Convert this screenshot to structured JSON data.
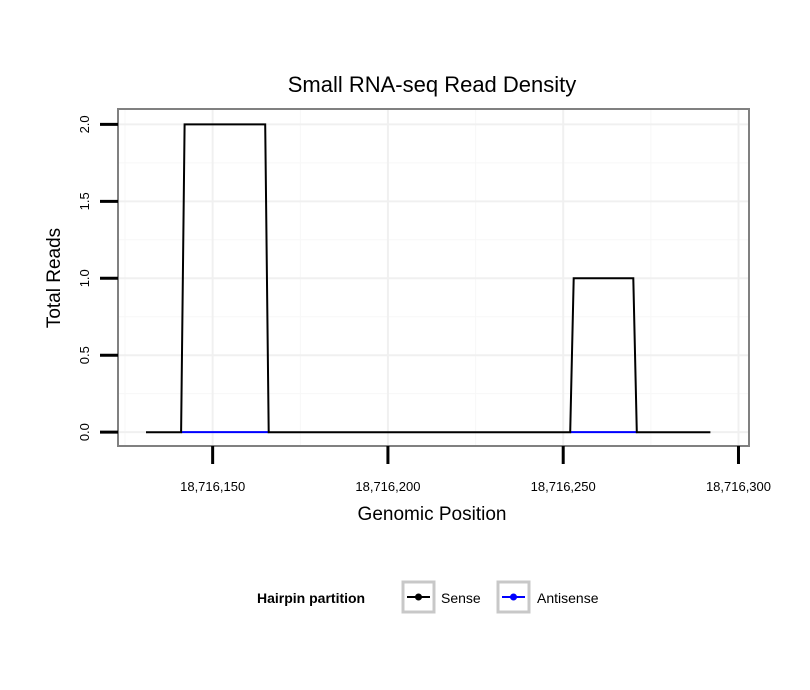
{
  "chart_data": {
    "type": "line",
    "title": "Small RNA-seq Read Density",
    "xlabel": "Genomic Position",
    "ylabel": "Total Reads",
    "xlim": [
      18716123,
      18716303
    ],
    "ylim": [
      -0.09,
      2.1
    ],
    "x_ticks": [
      18716150,
      18716200,
      18716250,
      18716300
    ],
    "x_tick_labels": [
      "18,716,150",
      "18,716,200",
      "18,716,250",
      "18,716,300"
    ],
    "y_ticks": [
      0.0,
      0.5,
      1.0,
      1.5,
      2.0
    ],
    "y_tick_labels": [
      "0.0",
      "0.5",
      "1.0",
      "1.5",
      "2.0"
    ],
    "grid": true,
    "legend": {
      "title": "Hairpin partition",
      "position": "bottom",
      "entries": [
        "Sense",
        "Antisense"
      ]
    },
    "series": [
      {
        "name": "Sense",
        "color": "#000000",
        "x": [
          18716131,
          18716141,
          18716142,
          18716165,
          18716166,
          18716252,
          18716253,
          18716270,
          18716271,
          18716292
        ],
        "values": [
          0,
          0,
          2,
          2,
          0,
          0,
          1,
          1,
          0,
          0
        ]
      },
      {
        "name": "Antisense",
        "color": "#0000ff",
        "x": [
          18716141,
          18716166,
          18716252,
          18716271
        ],
        "values": [
          0,
          0,
          0,
          0
        ]
      }
    ]
  }
}
